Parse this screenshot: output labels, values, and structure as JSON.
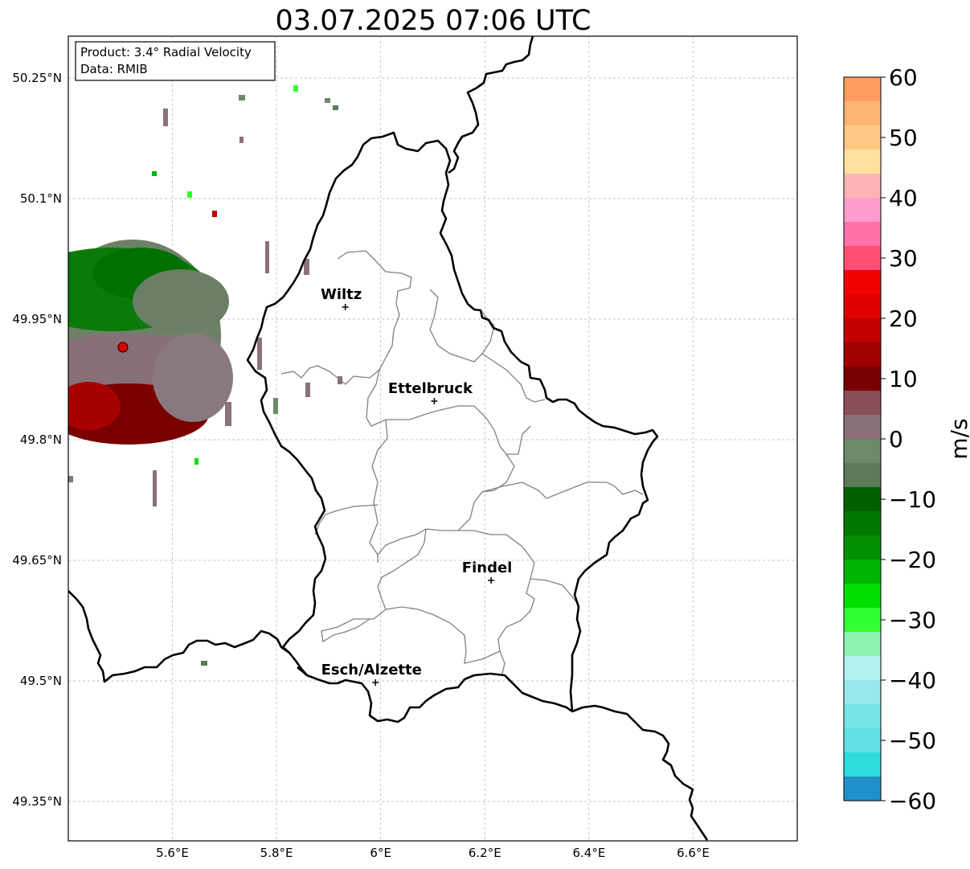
{
  "title": "03.07.2025 07:06 UTC",
  "info_box": {
    "line1": "Product: 3.4° Radial Velocity",
    "line2": "Data: RMIB"
  },
  "lat_ticks": [
    {
      "value": 50.25,
      "label": "50.25°N"
    },
    {
      "value": 50.1,
      "label": "50.1°N"
    },
    {
      "value": 49.95,
      "label": "49.95°N"
    },
    {
      "value": 49.8,
      "label": "49.8°N"
    },
    {
      "value": 49.65,
      "label": "49.65°N"
    },
    {
      "value": 49.5,
      "label": "49.5°N"
    },
    {
      "value": 49.35,
      "label": "49.35°N"
    }
  ],
  "lon_ticks": [
    {
      "value": 5.6,
      "label": "5.6°E"
    },
    {
      "value": 5.8,
      "label": "5.8°E"
    },
    {
      "value": 6.0,
      "label": "6°E"
    },
    {
      "value": 6.2,
      "label": "6.2°E"
    },
    {
      "value": 6.4,
      "label": "6.4°E"
    },
    {
      "value": 6.6,
      "label": "6.6°E"
    }
  ],
  "cities": [
    {
      "name": "Wiltz",
      "lon": 5.932,
      "lat": 49.965
    },
    {
      "name": "Ettelbruck",
      "lon": 6.103,
      "lat": 49.848
    },
    {
      "name": "Findel",
      "lon": 6.212,
      "lat": 49.625
    },
    {
      "name": "Esch/Alzette",
      "lon": 5.99,
      "lat": 49.498
    }
  ],
  "radar_site": {
    "lon": 5.505,
    "lat": 49.915,
    "color": "#e00000"
  },
  "colorbar": {
    "unit": "m/s",
    "min": -60,
    "max": 60,
    "ticks": [
      {
        "value": 60,
        "label": "60"
      },
      {
        "value": 50,
        "label": "50"
      },
      {
        "value": 40,
        "label": "40"
      },
      {
        "value": 30,
        "label": "30"
      },
      {
        "value": 20,
        "label": "20"
      },
      {
        "value": 10,
        "label": "10"
      },
      {
        "value": 0,
        "label": "0"
      },
      {
        "value": -10,
        "label": "−10"
      },
      {
        "value": -20,
        "label": "−20"
      },
      {
        "value": -30,
        "label": "−30"
      },
      {
        "value": -40,
        "label": "−40"
      },
      {
        "value": -50,
        "label": "−50"
      },
      {
        "value": -60,
        "label": "−60"
      }
    ],
    "bands": [
      {
        "from": 56,
        "to": 60,
        "color": "#ff9e5e"
      },
      {
        "from": 52,
        "to": 56,
        "color": "#ffb472"
      },
      {
        "from": 48,
        "to": 52,
        "color": "#ffc885"
      },
      {
        "from": 44,
        "to": 48,
        "color": "#ffe09d"
      },
      {
        "from": 40,
        "to": 44,
        "color": "#ffb4b4"
      },
      {
        "from": 36,
        "to": 40,
        "color": "#ff9ccc"
      },
      {
        "from": 32,
        "to": 36,
        "color": "#ff72a8"
      },
      {
        "from": 28,
        "to": 32,
        "color": "#ff4e70"
      },
      {
        "from": 24,
        "to": 28,
        "color": "#f20000"
      },
      {
        "from": 20,
        "to": 24,
        "color": "#e00000"
      },
      {
        "from": 16,
        "to": 20,
        "color": "#c20000"
      },
      {
        "from": 12,
        "to": 16,
        "color": "#a00000"
      },
      {
        "from": 8,
        "to": 12,
        "color": "#780000"
      },
      {
        "from": 4,
        "to": 8,
        "color": "#8a4e58"
      },
      {
        "from": 0,
        "to": 4,
        "color": "#8a7278"
      },
      {
        "from": -4,
        "to": 0,
        "color": "#6a8a6a"
      },
      {
        "from": -8,
        "to": -4,
        "color": "#5a7a58"
      },
      {
        "from": -12,
        "to": -8,
        "color": "#006000"
      },
      {
        "from": -16,
        "to": -12,
        "color": "#007800"
      },
      {
        "from": -20,
        "to": -16,
        "color": "#009000"
      },
      {
        "from": -24,
        "to": -20,
        "color": "#00b400"
      },
      {
        "from": -28,
        "to": -24,
        "color": "#00e000"
      },
      {
        "from": -32,
        "to": -28,
        "color": "#30ff30"
      },
      {
        "from": -36,
        "to": -32,
        "color": "#8ef2b0"
      },
      {
        "from": -40,
        "to": -36,
        "color": "#b4f0f0"
      },
      {
        "from": -44,
        "to": -40,
        "color": "#96e8ec"
      },
      {
        "from": -48,
        "to": -44,
        "color": "#78e4e8"
      },
      {
        "from": -52,
        "to": -48,
        "color": "#5ee0e4"
      },
      {
        "from": -56,
        "to": -52,
        "color": "#2edcdc"
      },
      {
        "from": -60,
        "to": -56,
        "color": "#2090c8"
      }
    ]
  }
}
